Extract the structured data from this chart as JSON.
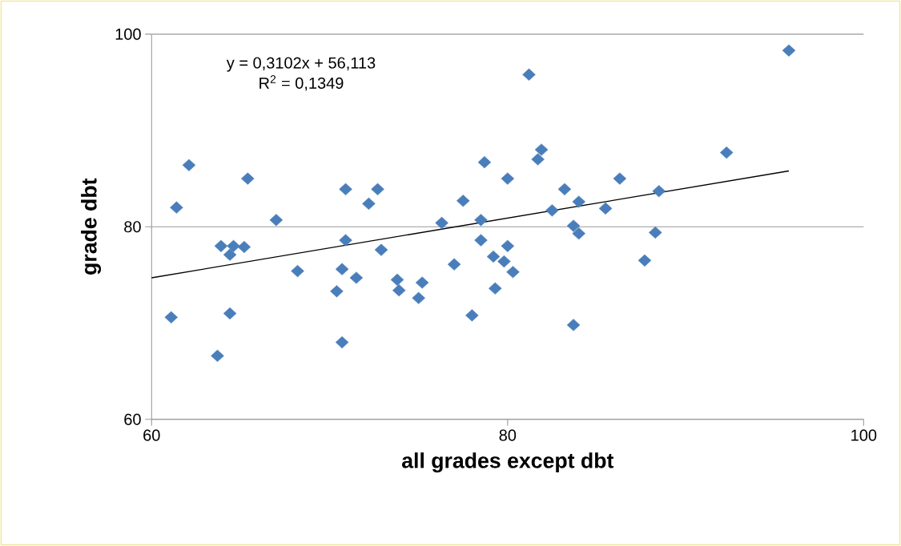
{
  "chart_data": {
    "type": "scatter",
    "xlabel": "all grades except dbt",
    "ylabel": "grade dbt",
    "annotations": [
      "y = 0,3102x + 56,113",
      "R$^{2}$ = 0,1349"
    ],
    "xlim": [
      60,
      100
    ],
    "xticks": [
      60,
      80,
      100
    ],
    "ylim": [
      60,
      100
    ],
    "yticks": [
      60,
      80,
      100
    ],
    "grid": "y",
    "marker": "diamond",
    "series": [
      {
        "color": "#4a7ebb",
        "x": [
          61.1,
          61.4,
          62.1,
          63.7,
          63.9,
          64.4,
          64.4,
          64.6,
          65.2,
          65.4,
          67.0,
          68.2,
          70.4,
          70.7,
          70.7,
          70.9,
          70.9,
          71.5,
          72.2,
          72.7,
          72.9,
          73.8,
          73.9,
          75.0,
          75.2,
          76.3,
          77.0,
          77.5,
          78.0,
          78.5,
          78.5,
          78.7,
          79.2,
          79.3,
          79.8,
          80.0,
          80.0,
          80.3,
          81.2,
          81.7,
          81.9,
          82.5,
          83.2,
          83.7,
          83.7,
          84.0,
          84.0,
          85.5,
          86.3,
          87.7,
          88.3,
          88.5,
          92.3,
          95.8
        ],
        "values": [
          70.6,
          82.0,
          86.4,
          66.6,
          78.0,
          77.1,
          71.0,
          78.0,
          77.9,
          85.0,
          80.7,
          75.4,
          73.3,
          75.6,
          68.0,
          83.9,
          78.6,
          74.7,
          82.4,
          83.9,
          77.6,
          74.5,
          73.4,
          72.6,
          74.2,
          80.4,
          76.1,
          82.7,
          70.8,
          80.7,
          78.6,
          86.7,
          76.9,
          73.6,
          76.4,
          85.0,
          78.0,
          75.3,
          95.8,
          87.0,
          88.0,
          81.7,
          83.9,
          80.1,
          69.8,
          82.6,
          79.3,
          81.9,
          85.0,
          76.5,
          79.4,
          83.7,
          87.7,
          98.3
        ]
      },
      {
        "type": "line",
        "color": "#000000",
        "marker": "none",
        "x": [
          60,
          95.8
        ],
        "values": [
          74.7,
          85.8
        ]
      }
    ]
  }
}
